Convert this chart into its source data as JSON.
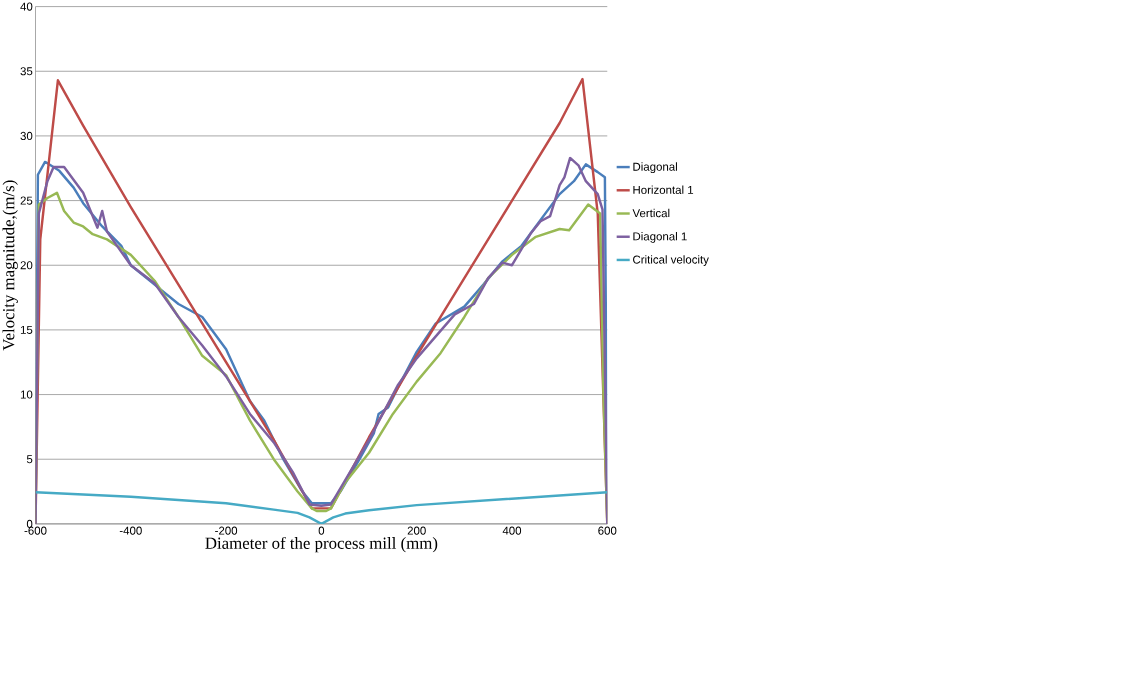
{
  "chart_data": {
    "type": "line",
    "xlabel": "Diameter of the process mill (mm)",
    "ylabel": "Velocity magnitude,(m/s)",
    "xlim": [
      -600,
      600
    ],
    "xticks": [
      -600,
      -400,
      -200,
      0,
      200,
      400,
      600
    ],
    "ylim": [
      0,
      40
    ],
    "yticks": [
      0,
      5,
      10,
      15,
      20,
      25,
      30,
      35,
      40
    ],
    "grid": "y",
    "legend": "right",
    "marker": "none",
    "line_style": "solid",
    "series": [
      {
        "name": "Diagonal",
        "color": "#4a7ebb",
        "x": [
          -600,
          -595,
          -580,
          -550,
          -520,
          -500,
          -460,
          -420,
          -400,
          -350,
          -300,
          -250,
          -200,
          -150,
          -120,
          -80,
          -40,
          -20,
          0,
          20,
          40,
          80,
          110,
          120,
          140,
          160,
          200,
          240,
          300,
          340,
          380,
          420,
          460,
          500,
          530,
          555,
          580,
          595,
          600
        ],
        "values": [
          0,
          27,
          28,
          27.3,
          26,
          24.8,
          23,
          21.5,
          20,
          18.5,
          17,
          16,
          13.5,
          9.5,
          8,
          5,
          2.5,
          1.6,
          1.6,
          1.6,
          2.5,
          5,
          7,
          8.5,
          9,
          10.5,
          13.3,
          15.5,
          16.8,
          18.5,
          20.3,
          21.5,
          23.5,
          25.5,
          26.5,
          27.8,
          27.2,
          26.8,
          0
        ]
      },
      {
        "name": "Horizontal  1",
        "color": "#be4b48",
        "x": [
          -600,
          -590,
          -553,
          -500,
          -400,
          -300,
          -200,
          -100,
          -20,
          0,
          20,
          100,
          200,
          300,
          400,
          500,
          548,
          580,
          600
        ],
        "values": [
          0,
          22,
          34.3,
          30.8,
          24.5,
          18.5,
          12.5,
          6.5,
          1.2,
          1.2,
          1.2,
          6.7,
          13,
          19,
          25,
          31,
          34.4,
          24,
          0
        ]
      },
      {
        "name": "Vertical",
        "color": "#98b954",
        "x": [
          -600,
          -593,
          -575,
          -555,
          -540,
          -520,
          -500,
          -480,
          -450,
          -400,
          -350,
          -300,
          -250,
          -200,
          -150,
          -100,
          -50,
          -20,
          -10,
          10,
          20,
          50,
          100,
          150,
          200,
          250,
          300,
          350,
          400,
          450,
          500,
          520,
          560,
          585,
          592,
          600
        ],
        "values": [
          0,
          24.7,
          25.2,
          25.6,
          24.2,
          23.3,
          23,
          22.4,
          22,
          20.8,
          18.8,
          16,
          13,
          11.5,
          8,
          5,
          2.5,
          1.2,
          1.0,
          1.0,
          1.2,
          3.2,
          5.5,
          8.5,
          11,
          13.2,
          16,
          19,
          20.8,
          22.2,
          22.8,
          22.7,
          24.7,
          24,
          10,
          0
        ]
      },
      {
        "name": "Diagonal 1",
        "color": "#7d60a0",
        "x": [
          -600,
          -593,
          -575,
          -562,
          -540,
          -500,
          -470,
          -460,
          -450,
          -400,
          -350,
          -300,
          -250,
          -200,
          -150,
          -100,
          -60,
          -25,
          0,
          20,
          60,
          100,
          160,
          200,
          240,
          280,
          320,
          350,
          380,
          400,
          440,
          460,
          480,
          500,
          510,
          522,
          540,
          555,
          580,
          590,
          600
        ],
        "values": [
          0,
          24,
          26.5,
          27.6,
          27.6,
          25.6,
          22.9,
          24.2,
          22.6,
          20,
          18.6,
          16,
          13.8,
          11.4,
          8.5,
          6.3,
          4,
          1.5,
          1.4,
          1.5,
          4,
          6.5,
          10.7,
          12.8,
          14.5,
          16.2,
          17,
          19,
          20.2,
          20,
          22.5,
          23.4,
          23.8,
          26.2,
          26.8,
          28.3,
          27.7,
          26.5,
          25.5,
          24.3,
          0
        ]
      },
      {
        "name": "Critical velocity",
        "color": "#46aac5",
        "x": [
          -600,
          -400,
          -200,
          -100,
          -50,
          -25,
          0,
          25,
          50,
          100,
          200,
          400,
          600
        ],
        "values": [
          2.45,
          2.1,
          1.6,
          1.1,
          0.85,
          0.5,
          0,
          0.5,
          0.8,
          1.05,
          1.45,
          1.95,
          2.45
        ]
      }
    ]
  }
}
